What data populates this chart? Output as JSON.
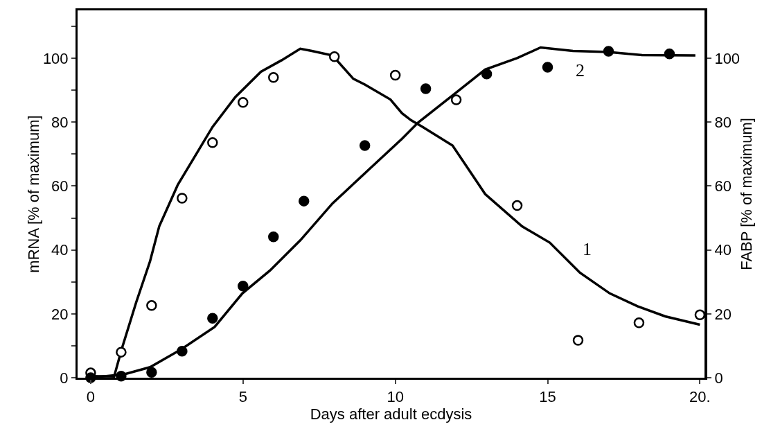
{
  "chart_data": {
    "type": "scatter",
    "xlabel": "Days after adult ecdysis",
    "ylabel": "mRNA [% of maximum]",
    "y2label": "FABP [% of maximum]",
    "xlim": [
      -0.43,
      20.15
    ],
    "xticks": [
      0,
      5,
      10,
      15,
      {
        "value": 20,
        "label": "20."
      }
    ],
    "ylim": [
      0,
      115
    ],
    "yticks": [
      0,
      {
        "value": 10,
        "label": null
      },
      20,
      {
        "value": 30,
        "label": null
      },
      40,
      {
        "value": 50,
        "label": null
      },
      60,
      {
        "value": 70,
        "label": null
      },
      80,
      {
        "value": 90,
        "label": null
      },
      100,
      {
        "value": 110,
        "label": null
      }
    ],
    "y2lim": [
      0,
      115
    ],
    "y2ticks": [
      0,
      20,
      40,
      60,
      80,
      100
    ],
    "grid": false,
    "legend": false,
    "marker": "circle",
    "series": [
      {
        "type": "line",
        "name": "1",
        "marker": "none",
        "color": "#000000",
        "x": [
          0,
          0.77,
          1.02,
          1.49,
          1.95,
          2.25,
          2.86,
          3.54,
          4.0,
          4.75,
          5.59,
          6.27,
          6.88,
          7.26,
          7.94,
          8.62,
          9.0,
          9.84,
          10.22,
          10.52,
          10.9,
          11.88,
          12.95,
          14.16,
          15.07,
          16.06,
          17.04,
          17.95,
          18.86,
          20
        ],
        "values": [
          0.5,
          0.4,
          9,
          23.5,
          36.5,
          47.4,
          60.4,
          71.2,
          78.5,
          87.9,
          95.8,
          99.4,
          103,
          102.3,
          100.9,
          93.6,
          91.8,
          87.1,
          82.8,
          80.6,
          78.5,
          72.7,
          57.5,
          47.4,
          42.3,
          32.9,
          26.4,
          22.4,
          19.2,
          16.6
        ]
      },
      {
        "type": "line",
        "name": "2",
        "marker": "none",
        "color": "#000000",
        "axis": "y2",
        "x": [
          0,
          1.11,
          1.95,
          2.94,
          4.07,
          4.98,
          5.89,
          6.88,
          7.94,
          9.08,
          10.22,
          10.75,
          12.04,
          12.95,
          14.01,
          14.77,
          15.83,
          16.98,
          18.1,
          19.85
        ],
        "values": [
          0,
          1.1,
          3.3,
          8.7,
          15.9,
          26.4,
          33.6,
          43,
          54.6,
          64.7,
          74.8,
          79.9,
          89.6,
          96.5,
          100.1,
          103.4,
          102.3,
          102,
          101,
          100.9
        ]
      },
      {
        "color": "#ffffff",
        "x": [
          0,
          1,
          2,
          3,
          4,
          5,
          6,
          8,
          10,
          12,
          14,
          16,
          18,
          20
        ],
        "values": [
          1.5,
          8,
          22.6,
          56.2,
          73.6,
          86.2,
          94,
          100.5,
          94.7,
          87,
          53.9,
          11.7,
          17.2,
          19.7
        ]
      },
      {
        "color": "#000000",
        "axis": "y2",
        "x": [
          0,
          1,
          2,
          3,
          4,
          5,
          6,
          7,
          9,
          11,
          13,
          15,
          17,
          19
        ],
        "values": [
          0,
          0.5,
          1.7,
          8.3,
          18.6,
          28.7,
          44.1,
          55.3,
          72.7,
          90.5,
          95.1,
          97.2,
          102.2,
          101.4
        ]
      }
    ]
  }
}
